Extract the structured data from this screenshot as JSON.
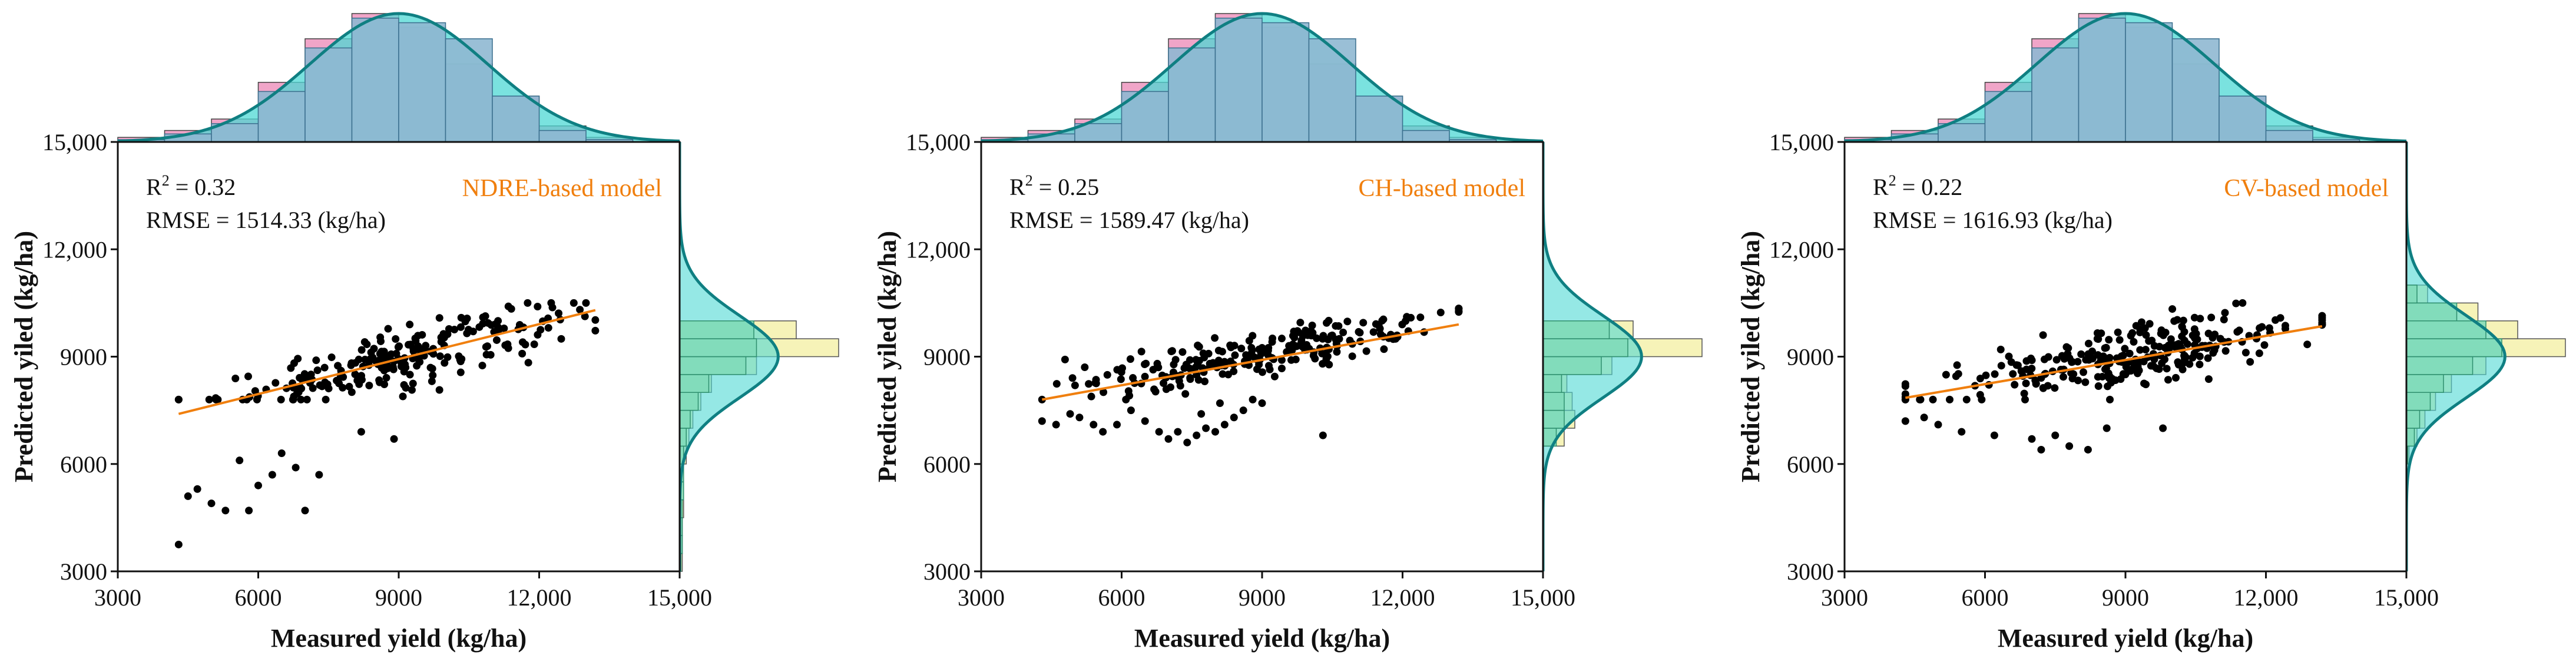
{
  "chart_data": [
    {
      "type": "scatter",
      "title": "",
      "model_label": "NDRE-based model",
      "r2_label": "R",
      "r2_sup": "2",
      "r2_value": " = 0.32",
      "rmse": "RMSE = 1514.33 (kg/ha)",
      "xlabel": "Measured yield (kg/ha)",
      "ylabel": "Predicted yiled (kg/ha)",
      "xlim": [
        3000,
        15000
      ],
      "ylim": [
        3000,
        15000
      ],
      "xticks": [
        "3000",
        "6000",
        "9000",
        "12,000",
        "15,000"
      ],
      "yticks": [
        "3000",
        "6000",
        "9000",
        "12,000",
        "15,000"
      ],
      "fit_line": {
        "x": [
          4300,
          13200
        ],
        "y": [
          7400,
          10300
        ]
      },
      "cluster": {
        "mean_x": 9000,
        "sd_x": 1900,
        "slope": 0.33,
        "intercept": 5990,
        "noise": 700,
        "n": 230
      },
      "low_tail": [
        [
          4300,
          3750
        ],
        [
          4500,
          5100
        ],
        [
          4700,
          5300
        ],
        [
          5000,
          4900
        ],
        [
          5300,
          4700
        ],
        [
          5800,
          4700
        ],
        [
          6000,
          5400
        ],
        [
          6300,
          5700
        ],
        [
          6800,
          5900
        ],
        [
          7000,
          4700
        ],
        [
          7300,
          5700
        ],
        [
          8200,
          6900
        ],
        [
          8900,
          6700
        ],
        [
          6500,
          6300
        ],
        [
          5600,
          6100
        ]
      ],
      "top_hist": {
        "edges": [
          3000,
          4000,
          5000,
          6000,
          7000,
          8000,
          9000,
          10000,
          11000,
          12000,
          13000,
          14000
        ],
        "counts_a": [
          4,
          10,
          20,
          52,
          90,
          112,
          100,
          68,
          40,
          14,
          4
        ],
        "counts_b": [
          2,
          7,
          16,
          44,
          82,
          108,
          104,
          90,
          40,
          10,
          2
        ]
      },
      "right_hist": {
        "bins_lower": [
          3000,
          3500,
          4000,
          4500,
          5000,
          5500,
          6000,
          6500,
          7000,
          7500,
          8000,
          8500,
          9000,
          9500,
          10000,
          10500
        ],
        "counts_a": [
          2,
          2,
          2,
          3,
          3,
          3,
          5,
          7,
          10,
          16,
          24,
          58,
          120,
          88,
          0,
          0
        ],
        "counts_b": [
          1,
          2,
          2,
          2,
          3,
          3,
          3,
          5,
          8,
          14,
          22,
          50,
          58,
          56,
          0,
          0
        ]
      }
    },
    {
      "type": "scatter",
      "title": "",
      "model_label": "CH-based model",
      "r2_label": "R",
      "r2_sup": "2",
      "r2_value": " = 0.25",
      "rmse": "RMSE = 1589.47 (kg/ha)",
      "xlabel": "Measured yield (kg/ha)",
      "ylabel": "Predicted yiled (kg/ha)",
      "xlim": [
        3000,
        15000
      ],
      "ylim": [
        3000,
        15000
      ],
      "xticks": [
        "3000",
        "6000",
        "9000",
        "12,000",
        "15,000"
      ],
      "yticks": [
        "3000",
        "6000",
        "9000",
        "12,000",
        "15,000"
      ],
      "fit_line": {
        "x": [
          4300,
          13200
        ],
        "y": [
          7800,
          9900
        ]
      },
      "cluster": {
        "mean_x": 9000,
        "sd_x": 1900,
        "slope": 0.24,
        "intercept": 6900,
        "noise": 550,
        "n": 230
      },
      "low_tail": [
        [
          4300,
          7200
        ],
        [
          4600,
          7100
        ],
        [
          4900,
          7400
        ],
        [
          5100,
          7300
        ],
        [
          5400,
          7100
        ],
        [
          5600,
          6900
        ],
        [
          6500,
          7200
        ],
        [
          6800,
          6900
        ],
        [
          7000,
          6700
        ],
        [
          7200,
          6900
        ],
        [
          7400,
          6600
        ],
        [
          7600,
          6800
        ],
        [
          7800,
          7000
        ],
        [
          8000,
          6900
        ],
        [
          8200,
          7100
        ],
        [
          8400,
          7300
        ],
        [
          8600,
          7500
        ],
        [
          8800,
          7800
        ],
        [
          9000,
          7700
        ],
        [
          6200,
          7500
        ],
        [
          5900,
          7100
        ],
        [
          7700,
          7400
        ],
        [
          8100,
          7700
        ],
        [
          10300,
          6800
        ]
      ],
      "top_hist": {
        "edges": [
          3000,
          4000,
          5000,
          6000,
          7000,
          8000,
          9000,
          10000,
          11000,
          12000,
          13000,
          14000
        ],
        "counts_a": [
          4,
          10,
          20,
          52,
          90,
          112,
          100,
          68,
          40,
          14,
          4
        ],
        "counts_b": [
          2,
          7,
          16,
          44,
          82,
          108,
          104,
          90,
          40,
          10,
          2
        ]
      },
      "right_hist": {
        "bins_lower": [
          3000,
          3500,
          4000,
          4500,
          5000,
          5500,
          6000,
          6500,
          7000,
          7500,
          8000,
          8500,
          9000,
          9500,
          10000,
          10500
        ],
        "counts_a": [
          0,
          0,
          0,
          0,
          0,
          0,
          0,
          16,
          24,
          22,
          18,
          52,
          120,
          68,
          0,
          0
        ],
        "counts_b": [
          0,
          0,
          0,
          0,
          0,
          0,
          0,
          10,
          16,
          16,
          14,
          44,
          64,
          50,
          0,
          0
        ]
      }
    },
    {
      "type": "scatter",
      "title": "",
      "model_label": "CV-based model",
      "r2_label": "R",
      "r2_sup": "2",
      "r2_value": " = 0.22",
      "rmse": "RMSE = 1616.93 (kg/ha)",
      "xlabel": "Measured yield (kg/ha)",
      "ylabel": "Predicted yiled (kg/ha)",
      "xlim": [
        3000,
        15000
      ],
      "ylim": [
        3000,
        15000
      ],
      "xticks": [
        "3000",
        "6000",
        "9000",
        "12,000",
        "15,000"
      ],
      "yticks": [
        "3000",
        "6000",
        "9000",
        "12,000",
        "15,000"
      ],
      "fit_line": {
        "x": [
          4300,
          13200
        ],
        "y": [
          7850,
          9850
        ]
      },
      "cluster": {
        "mean_x": 9000,
        "sd_x": 1900,
        "slope": 0.23,
        "intercept": 6850,
        "noise": 800,
        "n": 270
      },
      "low_tail": [
        [
          4300,
          7200
        ],
        [
          4700,
          7300
        ],
        [
          5000,
          7100
        ],
        [
          5500,
          6900
        ],
        [
          6200,
          6800
        ],
        [
          7000,
          6700
        ],
        [
          7200,
          6400
        ],
        [
          7500,
          6800
        ],
        [
          7800,
          6500
        ],
        [
          8200,
          6400
        ],
        [
          8600,
          7000
        ],
        [
          9800,
          7000
        ]
      ],
      "top_hist": {
        "edges": [
          3000,
          4000,
          5000,
          6000,
          7000,
          8000,
          9000,
          10000,
          11000,
          12000,
          13000,
          14000
        ],
        "counts_a": [
          4,
          10,
          20,
          52,
          90,
          112,
          100,
          68,
          40,
          14,
          4
        ],
        "counts_b": [
          2,
          7,
          16,
          44,
          82,
          108,
          104,
          90,
          40,
          10,
          2
        ]
      },
      "right_hist": {
        "bins_lower": [
          3000,
          3500,
          4000,
          4500,
          5000,
          5500,
          6000,
          6500,
          7000,
          7500,
          8000,
          8500,
          9000,
          9500,
          10000,
          10500
        ],
        "counts_a": [
          0,
          0,
          0,
          0,
          0,
          0,
          2,
          8,
          14,
          22,
          34,
          60,
          120,
          84,
          54,
          16
        ],
        "counts_b": [
          0,
          0,
          0,
          0,
          0,
          0,
          1,
          6,
          10,
          18,
          28,
          50,
          72,
          60,
          38,
          8
        ]
      }
    }
  ],
  "colors": {
    "axes": "#111111",
    "points": "#000000",
    "fit_line": "#F07F0E",
    "model_label": "#F07F0E",
    "top_hist_a": "#F0A5C8",
    "top_hist_b": "#8FB8D2",
    "right_hist_a": "#F6F3B8",
    "right_hist_b": "#7FDBB9",
    "kde_fill": "#4ED8D4",
    "kde_line": "#0F7F82"
  }
}
